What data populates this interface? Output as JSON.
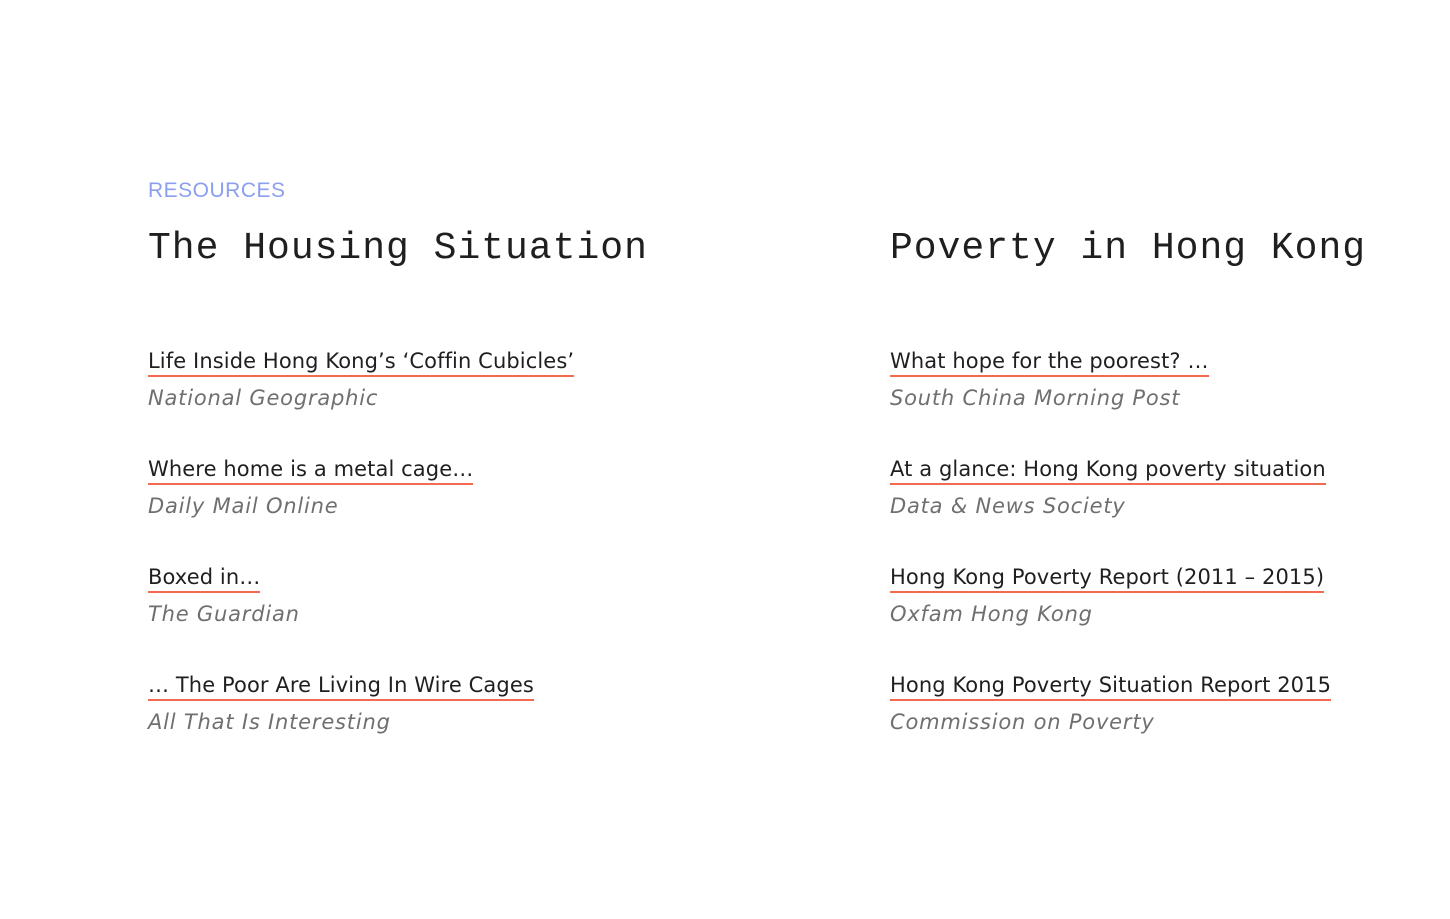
{
  "section_label": "RESOURCES",
  "columns": [
    {
      "title": "The Housing Situation",
      "items": [
        {
          "title": "Life Inside Hong Kong’s ‘Coffin Cubicles’",
          "source": "National Geographic"
        },
        {
          "title": "Where home is a metal cage…",
          "source": "Daily Mail Online"
        },
        {
          "title": "Boxed in…",
          "source": "The Guardian"
        },
        {
          "title": "… The Poor Are Living In Wire Cages",
          "source": "All That Is Interesting"
        }
      ]
    },
    {
      "title": "Poverty in Hong Kong",
      "items": [
        {
          "title": "What hope for the poorest? …",
          "source": "South China Morning Post"
        },
        {
          "title": "At a glance: Hong Kong poverty situation",
          "source": "Data & News Society"
        },
        {
          "title": "Hong Kong Poverty Report (2011 – 2015)",
          "source": "Oxfam Hong Kong"
        },
        {
          "title": "Hong Kong Poverty Situation Report 2015",
          "source": "Commission on Poverty"
        }
      ]
    }
  ],
  "colors": {
    "accent_label": "#8b9ef0",
    "link_underline": "#f26a50",
    "title_text": "#1f1f1f",
    "source_text": "#6f6f6f"
  }
}
